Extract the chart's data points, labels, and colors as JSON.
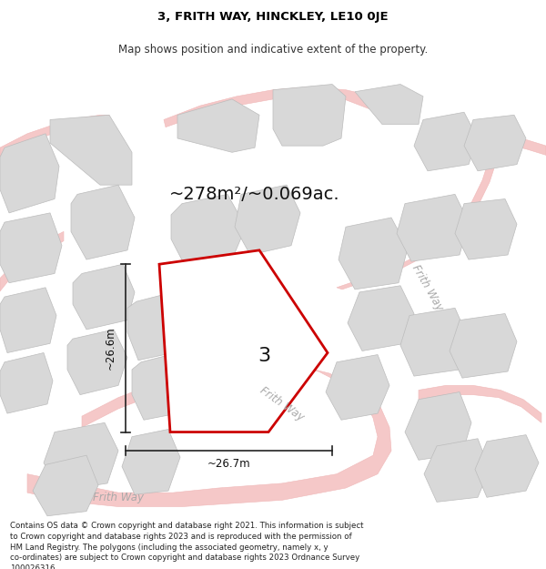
{
  "title": "3, FRITH WAY, HINCKLEY, LE10 0JE",
  "subtitle": "Map shows position and indicative extent of the property.",
  "area_label": "~278m²/~0.069ac.",
  "width_label": "~26.7m",
  "height_label": "~26.6m",
  "plot_number": "3",
  "footer_text": "Contains OS data © Crown copyright and database right 2021. This information is subject to Crown copyright and database rights 2023 and is reproduced with the permission of HM Land Registry. The polygons (including the associated geometry, namely x, y co-ordinates) are subject to Crown copyright and database rights 2023 Ordnance Survey 100026316.",
  "title_fontsize": 9.5,
  "subtitle_fontsize": 8.5,
  "footer_fontsize": 6.2,
  "map_bg": "#f2f2f2",
  "plot_edge_color": "#cc0000",
  "plot_fill_color": "#ffffff",
  "plot_lw": 2.0,
  "building_fill": "#d8d8d8",
  "building_edge": "#bcbcbc",
  "road_fill": "#f5c8c8",
  "road_edge": "#f0b8b8",
  "dim_color": "#222222",
  "label_color": "#111111",
  "road_label_color": "#aaaaaa",
  "area_label_fontsize": 14,
  "plot_num_fontsize": 16
}
